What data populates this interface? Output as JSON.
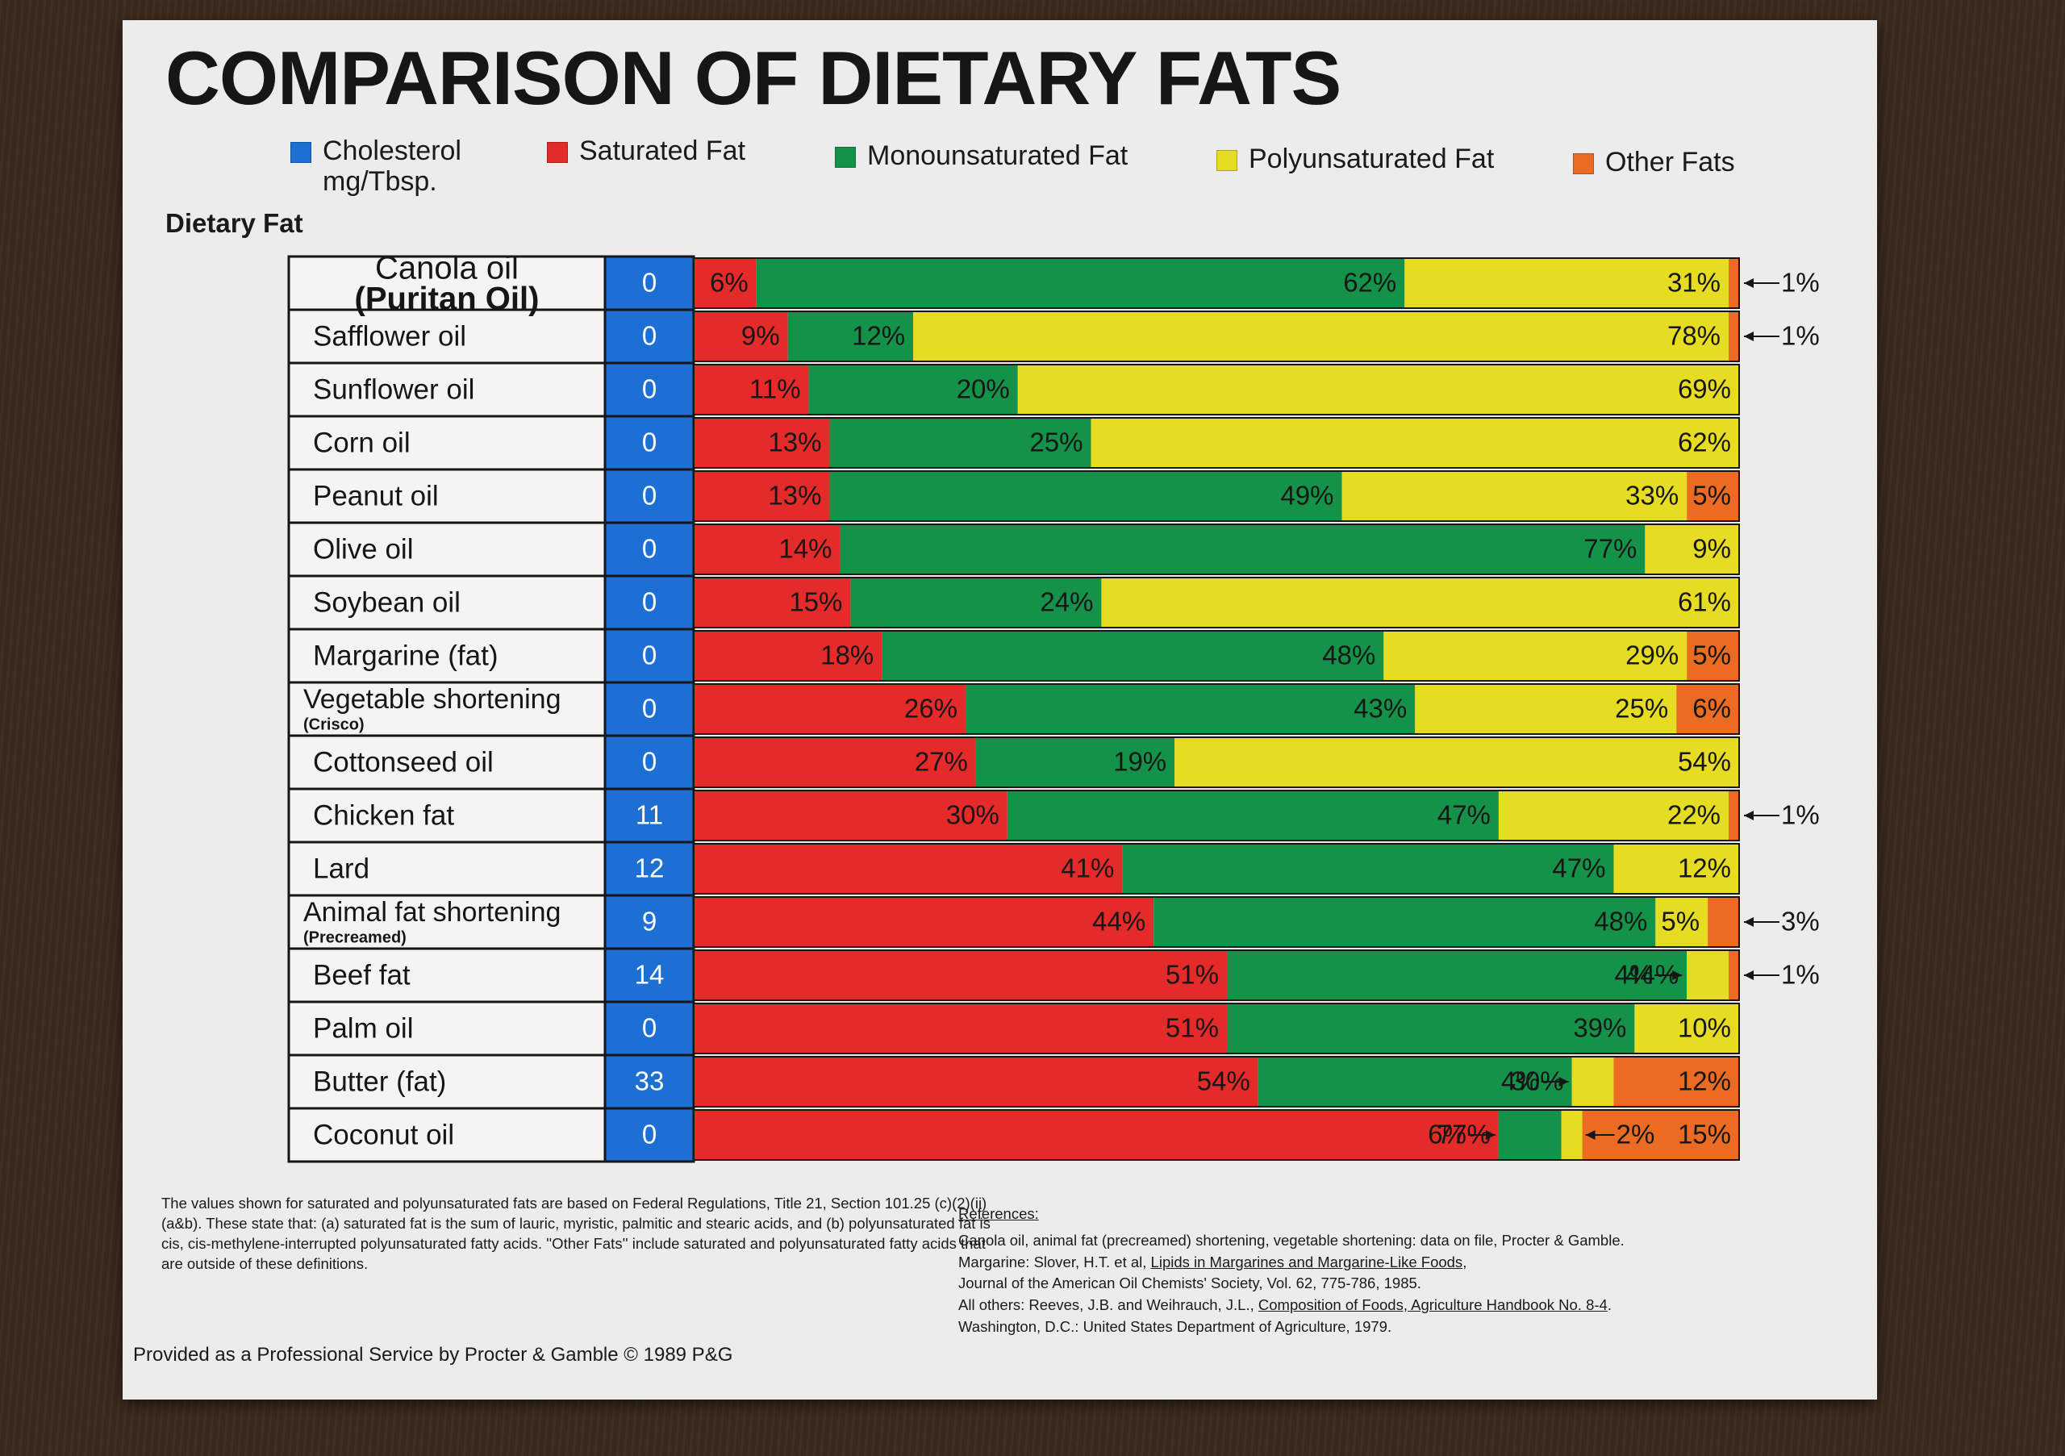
{
  "chart_data": {
    "type": "bar",
    "stacked": "percent",
    "orientation": "horizontal",
    "title": "COMPARISON OF DIETARY FATS",
    "category_heading": "Dietary Fat",
    "categories": [
      {
        "name": "Canola oil",
        "name2": "(Puritan Oil)",
        "cholesterol": "0"
      },
      {
        "name": "Safflower oil",
        "cholesterol": "0"
      },
      {
        "name": "Sunflower oil",
        "cholesterol": "0"
      },
      {
        "name": "Corn oil",
        "cholesterol": "0"
      },
      {
        "name": "Peanut oil",
        "cholesterol": "0"
      },
      {
        "name": "Olive oil",
        "cholesterol": "0"
      },
      {
        "name": "Soybean oil",
        "cholesterol": "0"
      },
      {
        "name": "Margarine (fat)",
        "cholesterol": "0"
      },
      {
        "name": "Vegetable shortening",
        "sub": "(Crisco)",
        "cholesterol": "0"
      },
      {
        "name": "Cottonseed oil",
        "cholesterol": "0"
      },
      {
        "name": "Chicken fat",
        "cholesterol": "11"
      },
      {
        "name": "Lard",
        "cholesterol": "12"
      },
      {
        "name": "Animal fat shortening",
        "sub": "(Precreamed)",
        "cholesterol": "9"
      },
      {
        "name": "Beef fat",
        "cholesterol": "14"
      },
      {
        "name": "Palm oil",
        "cholesterol": "0"
      },
      {
        "name": "Butter (fat)",
        "cholesterol": "33"
      },
      {
        "name": "Coconut oil",
        "cholesterol": "0"
      }
    ],
    "series": [
      {
        "name": "Saturated Fat",
        "color": "#e52a2a",
        "values": [
          6,
          9,
          11,
          13,
          13,
          14,
          15,
          18,
          26,
          27,
          30,
          41,
          44,
          51,
          51,
          54,
          77
        ]
      },
      {
        "name": "Monounsaturated Fat",
        "color": "#14924a",
        "values": [
          62,
          12,
          20,
          25,
          49,
          77,
          24,
          48,
          43,
          19,
          47,
          47,
          48,
          44,
          39,
          30,
          6
        ]
      },
      {
        "name": "Polyunsaturated Fat",
        "color": "#e6dc22",
        "values": [
          31,
          78,
          69,
          62,
          33,
          9,
          61,
          29,
          25,
          54,
          22,
          12,
          5,
          4,
          10,
          4,
          2
        ]
      },
      {
        "name": "Other Fats",
        "color": "#ec6b23",
        "values": [
          1,
          1,
          0,
          0,
          5,
          0,
          0,
          5,
          6,
          0,
          1,
          0,
          3,
          1,
          0,
          12,
          15
        ]
      }
    ],
    "data_labels": [
      {
        "seg": [
          "6%",
          "62%",
          "31%",
          null
        ],
        "outside": "1%"
      },
      {
        "seg": [
          "9%",
          "12%",
          "78%",
          null
        ],
        "outside": "1%"
      },
      {
        "seg": [
          "11%",
          "20%",
          "69%",
          null
        ]
      },
      {
        "seg": [
          "13%",
          "25%",
          "62%",
          null
        ]
      },
      {
        "seg": [
          "13%",
          "49%",
          "33%",
          "5%"
        ]
      },
      {
        "seg": [
          "14%",
          "77%",
          "9%",
          null
        ]
      },
      {
        "seg": [
          "15%",
          "24%",
          "61%",
          null
        ]
      },
      {
        "seg": [
          "18%",
          "48%",
          "29%",
          "5%"
        ]
      },
      {
        "seg": [
          "26%",
          "43%",
          "25%",
          "6%"
        ]
      },
      {
        "seg": [
          "27%",
          "19%",
          "54%",
          null
        ]
      },
      {
        "seg": [
          "30%",
          "47%",
          "22%",
          null
        ],
        "outside": "1%"
      },
      {
        "seg": [
          "41%",
          "47%",
          "12%",
          null
        ]
      },
      {
        "seg": [
          "44%",
          "48%",
          "5%",
          null
        ],
        "outside": "3%"
      },
      {
        "seg": [
          "51%",
          "44%",
          null,
          null
        ],
        "inner": "4%",
        "outside": "1%"
      },
      {
        "seg": [
          "51%",
          "39%",
          "10%",
          null
        ]
      },
      {
        "seg": [
          "54%",
          "30%",
          null,
          "12%"
        ],
        "inner": "4%"
      },
      {
        "seg": [
          "77%",
          null,
          null,
          "15%"
        ],
        "inner": "6%",
        "inner2": "2%"
      }
    ]
  },
  "legend": [
    {
      "label": "Cholesterol\nmg/Tbsp.",
      "color": "#1e6fd4"
    },
    {
      "label": "Saturated Fat",
      "color": "#e52a2a"
    },
    {
      "label": "Monounsaturated Fat",
      "color": "#14924a"
    },
    {
      "label": "Polyunsaturated Fat",
      "color": "#e6dc22"
    },
    {
      "label": "Other Fats",
      "color": "#ec6b23"
    }
  ],
  "colors": {
    "cholesterol": "#1e6fd4",
    "poster": "#ececec",
    "ink": "#161616"
  },
  "footnote": "The values shown for saturated and polyunsaturated fats are based on Federal Regulations, Title 21, Section 101.25 (c)(2)(ii)(a&b). These state that: (a) saturated fat is the sum of lauric, myristic, palmitic and stearic acids, and (b) polyunsaturated fat is cis, cis-methylene-interrupted polyunsaturated fatty acids. ''Other Fats'' include saturated and polyunsaturated fatty acids that are outside of these definitions.",
  "references": {
    "heading": "References:",
    "line1": "Canola oil, animal fat (precreamed) shortening, vegetable shortening:  data on file, Procter & Gamble.",
    "line2_prefix": "Margarine:  Slover, H.T. et al, ",
    "line2_title": "Lipids in Margarines and Margarine-Like Foods",
    "line2_suffix": ",",
    "line3": "Journal of the American Oil Chemists' Society, Vol. 62, 775-786, 1985.",
    "line4_prefix": "All others:  Reeves, J.B. and Weihrauch, J.L., ",
    "line4_title": "Composition of Foods, Agriculture Handbook No. 8-4",
    "line4_suffix": ". Washington, D.C.:  United States Department of Agriculture, 1979."
  },
  "credit": "Provided as a Professional Service by Procter & Gamble  © 1989 P&G"
}
